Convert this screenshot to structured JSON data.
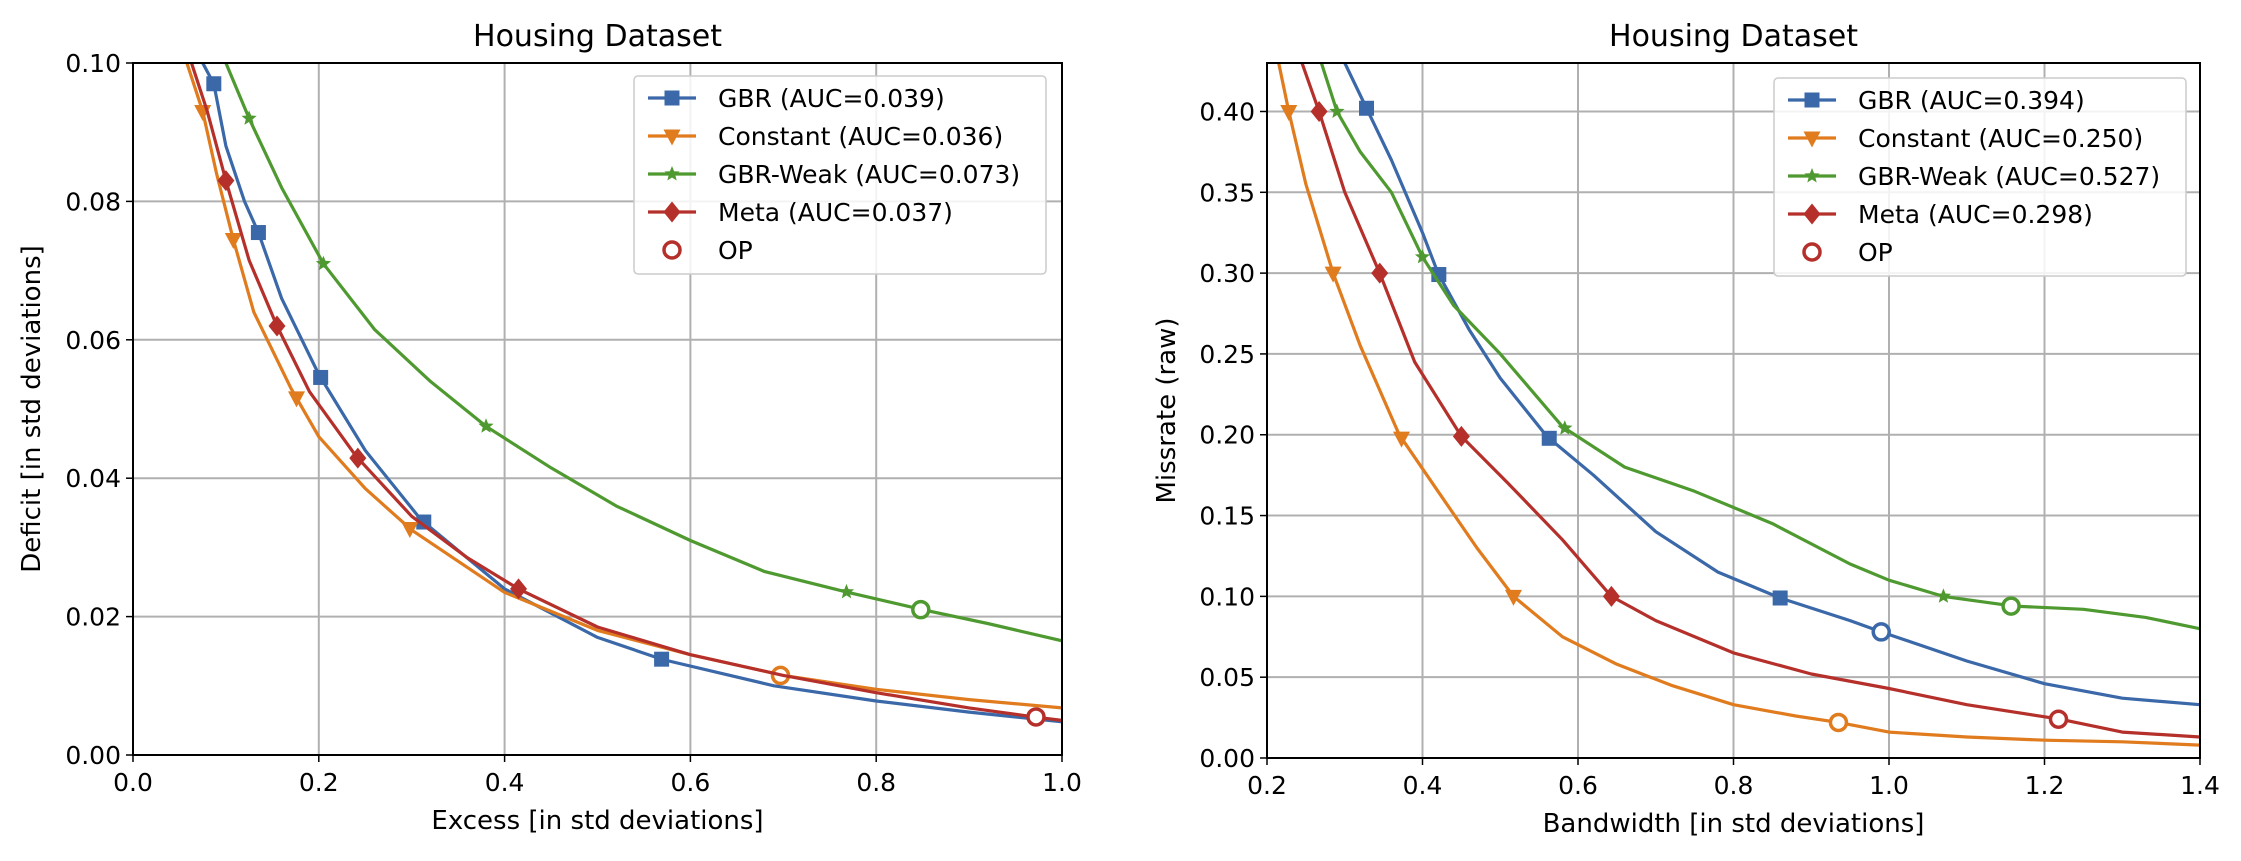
{
  "chart_data": [
    {
      "type": "line",
      "title": "Housing Dataset",
      "xlabel": "Excess [in std deviations]",
      "ylabel": "Deficit [in std deviations]",
      "xlim": [
        0.0,
        1.0
      ],
      "ylim": [
        0.0,
        0.1
      ],
      "xticks": [
        "0.0",
        "0.2",
        "0.4",
        "0.6",
        "0.8",
        "1.0"
      ],
      "yticks": [
        "0.00",
        "0.02",
        "0.04",
        "0.06",
        "0.08",
        "0.10"
      ],
      "grid": true,
      "legend_position": "top-right",
      "series": [
        {
          "name": "GBR (AUC=0.039)",
          "color": "#3a68a8",
          "marker": "square",
          "x": [
            0.075,
            0.087,
            0.1,
            0.12,
            0.135,
            0.16,
            0.2,
            0.25,
            0.31,
            0.4,
            0.5,
            0.57,
            0.69,
            0.8,
            0.9,
            1.0
          ],
          "y": [
            0.1,
            0.097,
            0.088,
            0.08,
            0.0755,
            0.066,
            0.055,
            0.044,
            0.034,
            0.024,
            0.017,
            0.0138,
            0.01,
            0.0078,
            0.0062,
            0.0048
          ],
          "markers_x": [
            0.087,
            0.135,
            0.202,
            0.313,
            0.569
          ]
        },
        {
          "name": "Constant (AUC=0.036)",
          "color": "#e07b1e",
          "marker": "triangle-down",
          "x": [
            0.058,
            0.075,
            0.09,
            0.108,
            0.13,
            0.17,
            0.2,
            0.25,
            0.3,
            0.4,
            0.5,
            0.6,
            0.7,
            0.8,
            0.9,
            1.0
          ],
          "y": [
            0.1,
            0.093,
            0.084,
            0.0745,
            0.064,
            0.053,
            0.046,
            0.0385,
            0.0325,
            0.0235,
            0.018,
            0.0145,
            0.0115,
            0.0095,
            0.008,
            0.0068
          ],
          "markers_x": [
            0.075,
            0.108,
            0.176,
            0.298
          ],
          "op": [
            0.697,
            0.0115
          ]
        },
        {
          "name": "GBR-Weak (AUC=0.073)",
          "color": "#4f9a30",
          "marker": "star",
          "x": [
            0.1,
            0.125,
            0.16,
            0.205,
            0.26,
            0.32,
            0.38,
            0.45,
            0.52,
            0.6,
            0.68,
            0.77,
            0.85,
            0.92,
            1.0
          ],
          "y": [
            0.1,
            0.092,
            0.082,
            0.071,
            0.0615,
            0.054,
            0.0475,
            0.0415,
            0.036,
            0.031,
            0.0265,
            0.0235,
            0.021,
            0.019,
            0.0165
          ],
          "markers_x": [
            0.125,
            0.205,
            0.38,
            0.768
          ],
          "op": [
            0.848,
            0.021
          ]
        },
        {
          "name": "Meta (AUC=0.037)",
          "color": "#b5302a",
          "marker": "diamond",
          "x": [
            0.063,
            0.08,
            0.1,
            0.125,
            0.155,
            0.19,
            0.24,
            0.3,
            0.36,
            0.415,
            0.5,
            0.6,
            0.7,
            0.8,
            0.9,
            0.97,
            1.0
          ],
          "y": [
            0.1,
            0.093,
            0.083,
            0.0715,
            0.062,
            0.0525,
            0.0432,
            0.0345,
            0.0285,
            0.024,
            0.0185,
            0.0145,
            0.0115,
            0.009,
            0.0068,
            0.0055,
            0.005
          ],
          "markers_x": [
            0.1,
            0.155,
            0.242,
            0.415
          ],
          "op": [
            0.972,
            0.0055
          ]
        }
      ],
      "op_label": "OP"
    },
    {
      "type": "line",
      "title": "Housing Dataset",
      "xlabel": "Bandwidth [in std deviations]",
      "ylabel": "Missrate (raw)",
      "xlim": [
        0.2,
        1.4
      ],
      "ylim": [
        0.0,
        0.43
      ],
      "xticks": [
        "0.2",
        "0.4",
        "0.6",
        "0.8",
        "1.0",
        "1.2",
        "1.4"
      ],
      "yticks": [
        "0.00",
        "0.05",
        "0.10",
        "0.15",
        "0.20",
        "0.25",
        "0.30",
        "0.35",
        "0.40"
      ],
      "grid": true,
      "legend_position": "top-right",
      "series": [
        {
          "name": "GBR (AUC=0.394)",
          "color": "#3a68a8",
          "marker": "square",
          "x": [
            0.3,
            0.33,
            0.36,
            0.4,
            0.42,
            0.46,
            0.5,
            0.56,
            0.62,
            0.7,
            0.78,
            0.86,
            0.95,
            0.99,
            1.1,
            1.2,
            1.3,
            1.4
          ],
          "y": [
            0.43,
            0.4,
            0.37,
            0.325,
            0.3,
            0.265,
            0.235,
            0.199,
            0.175,
            0.14,
            0.115,
            0.099,
            0.085,
            0.078,
            0.06,
            0.046,
            0.037,
            0.033
          ],
          "markers_x": [
            0.328,
            0.421,
            0.563,
            0.86
          ],
          "op": [
            0.99,
            0.078
          ]
        },
        {
          "name": "Constant (AUC=0.250)",
          "color": "#e07b1e",
          "marker": "triangle-down",
          "x": [
            0.215,
            0.228,
            0.25,
            0.285,
            0.32,
            0.37,
            0.42,
            0.47,
            0.517,
            0.58,
            0.65,
            0.72,
            0.8,
            0.88,
            0.935,
            1.0,
            1.1,
            1.2,
            1.3,
            1.4
          ],
          "y": [
            0.43,
            0.4,
            0.355,
            0.3,
            0.255,
            0.2,
            0.165,
            0.13,
            0.1,
            0.075,
            0.058,
            0.045,
            0.033,
            0.026,
            0.022,
            0.016,
            0.013,
            0.011,
            0.01,
            0.008
          ],
          "markers_x": [
            0.228,
            0.285,
            0.373,
            0.517
          ],
          "op": [
            0.935,
            0.022
          ]
        },
        {
          "name": "GBR-Weak (AUC=0.527)",
          "color": "#4f9a30",
          "marker": "star",
          "x": [
            0.27,
            0.29,
            0.32,
            0.36,
            0.4,
            0.44,
            0.5,
            0.58,
            0.66,
            0.75,
            0.85,
            0.95,
            1.0,
            1.07,
            1.16,
            1.25,
            1.33,
            1.4
          ],
          "y": [
            0.43,
            0.4,
            0.375,
            0.35,
            0.31,
            0.28,
            0.25,
            0.205,
            0.18,
            0.165,
            0.145,
            0.12,
            0.11,
            0.1,
            0.094,
            0.092,
            0.087,
            0.08
          ],
          "markers_x": [
            0.29,
            0.4,
            0.583,
            1.07
          ],
          "op": [
            1.157,
            0.094
          ]
        },
        {
          "name": "Meta (AUC=0.298)",
          "color": "#b5302a",
          "marker": "diamond",
          "x": [
            0.245,
            0.267,
            0.3,
            0.345,
            0.39,
            0.45,
            0.51,
            0.58,
            0.643,
            0.7,
            0.8,
            0.9,
            1.0,
            1.1,
            1.22,
            1.3,
            1.4
          ],
          "y": [
            0.43,
            0.4,
            0.35,
            0.3,
            0.245,
            0.199,
            0.17,
            0.135,
            0.1,
            0.085,
            0.065,
            0.052,
            0.043,
            0.033,
            0.024,
            0.016,
            0.013
          ],
          "markers_x": [
            0.267,
            0.345,
            0.45,
            0.643
          ],
          "op": [
            1.218,
            0.024
          ]
        }
      ],
      "op_label": "OP"
    }
  ]
}
